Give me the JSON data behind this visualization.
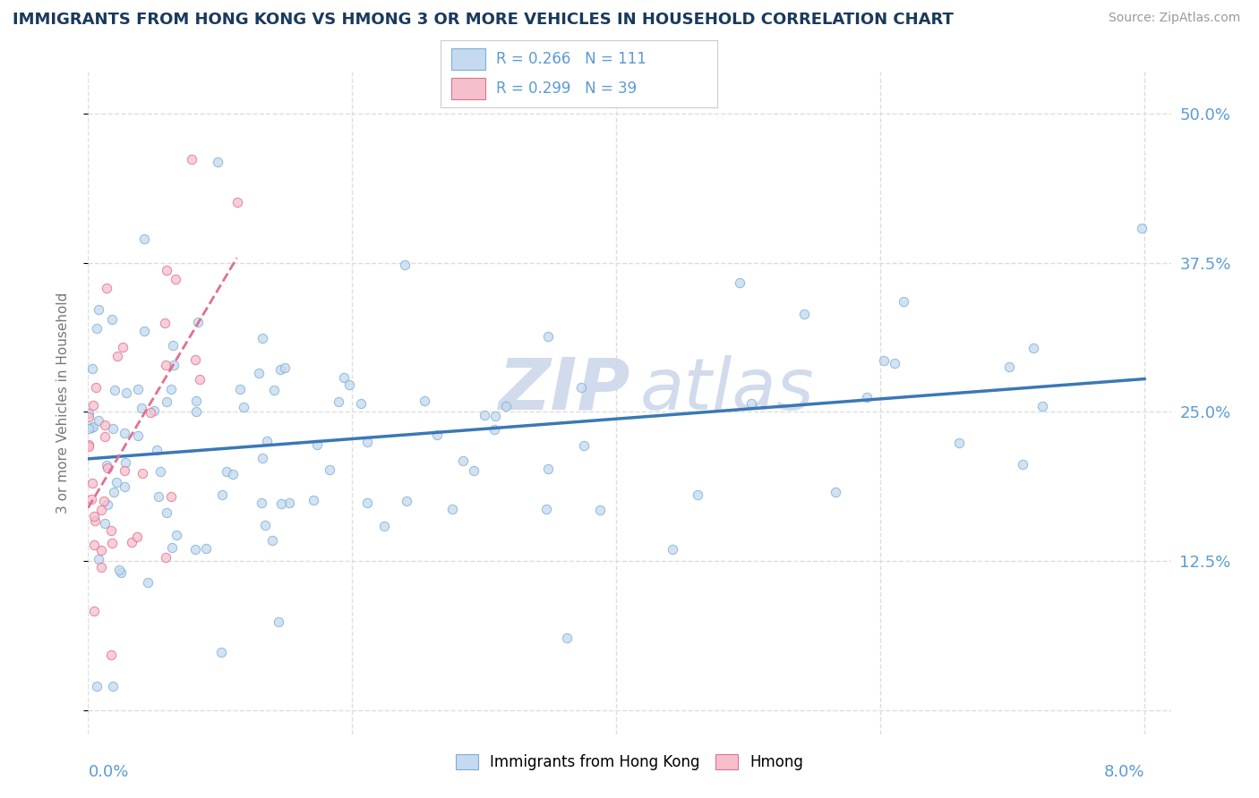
{
  "title": "IMMIGRANTS FROM HONG KONG VS HMONG 3 OR MORE VEHICLES IN HOUSEHOLD CORRELATION CHART",
  "source": "Source: ZipAtlas.com",
  "ylabel_label": "3 or more Vehicles in Household",
  "series": [
    {
      "name": "Immigrants from Hong Kong",
      "R": 0.266,
      "N": 111,
      "color": "#c5d9f0",
      "edge_color": "#7bafd4",
      "line_color": "#3b78b5"
    },
    {
      "name": "Hmong",
      "R": 0.299,
      "N": 39,
      "color": "#f5c0cc",
      "edge_color": "#e07090",
      "line_color": "#e07090"
    }
  ],
  "yticks": [
    0.0,
    0.125,
    0.25,
    0.375,
    0.5
  ],
  "ytick_labels_right": [
    "",
    "12.5%",
    "25.0%",
    "37.5%",
    "50.0%"
  ],
  "xticks": [
    0.0,
    0.02,
    0.04,
    0.06,
    0.08
  ],
  "xlim": [
    0.0,
    0.082
  ],
  "ylim": [
    -0.02,
    0.535
  ],
  "title_color": "#1a3a5c",
  "grid_color": "#dddddd",
  "scatter_alpha": 0.75,
  "scatter_size": 55,
  "background_color": "#ffffff",
  "watermark_color": "#ccd8ea",
  "tick_label_color": "#5b9bd5"
}
